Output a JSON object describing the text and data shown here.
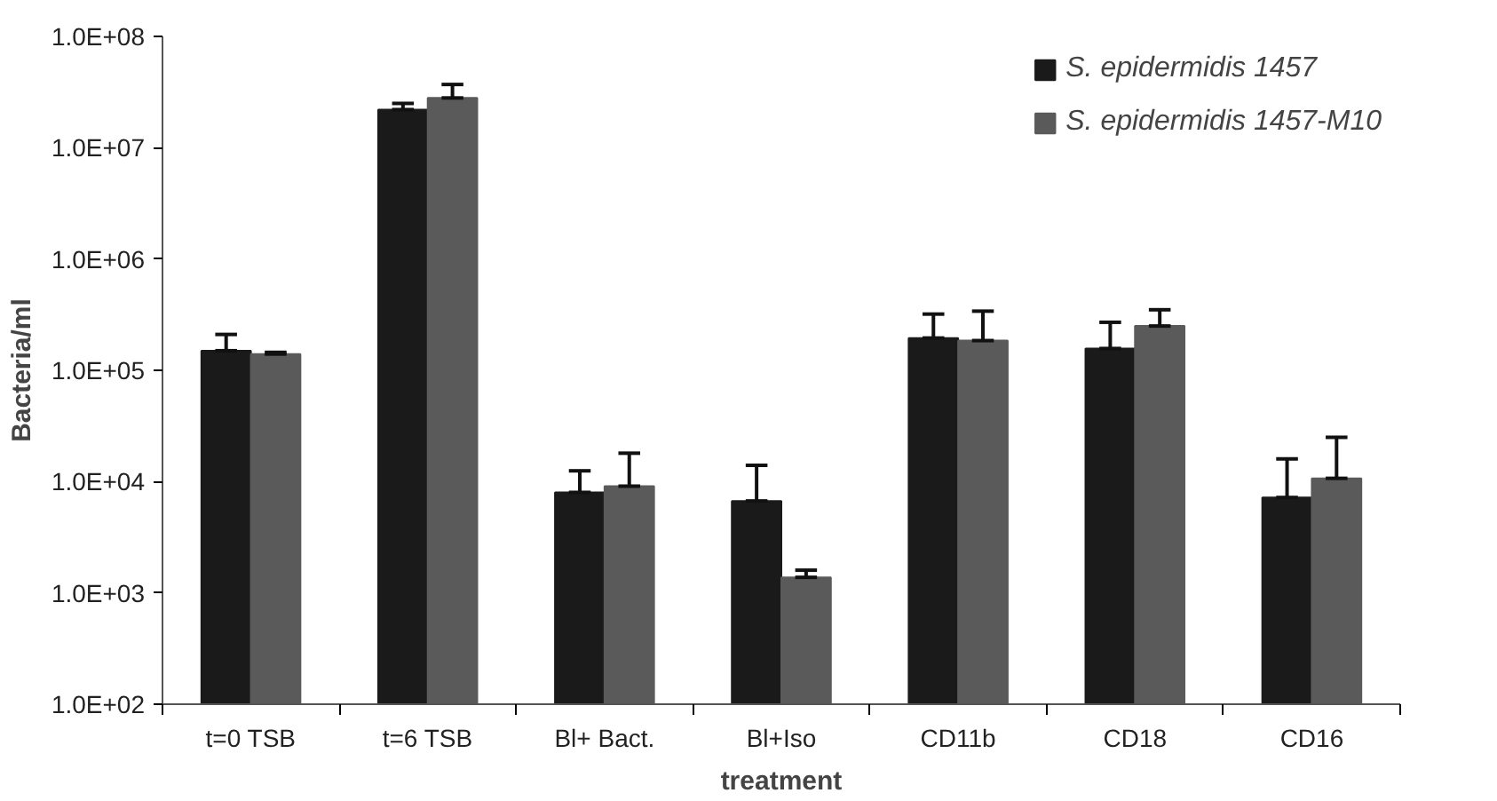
{
  "chart_data": {
    "type": "bar",
    "xlabel": "treatment",
    "ylabel": "Bacteria/ml",
    "categories": [
      "t=0 TSB",
      "t=6 TSB",
      "Bl+ Bact.",
      "Bl+Iso",
      "CD11b",
      "CD18",
      "CD16"
    ],
    "series": [
      {
        "name": "S. epidermidis 1457",
        "color": "#1a1a1a",
        "values": [
          150000,
          22000000,
          8000,
          6700,
          195000,
          157000,
          7200
        ],
        "errors": [
          [
            150000,
            210000
          ],
          [
            22000000,
            25000000
          ],
          [
            8000,
            12500
          ],
          [
            6700,
            14000
          ],
          [
            195000,
            320000
          ],
          [
            157000,
            270000
          ],
          [
            7200,
            16000
          ]
        ]
      },
      {
        "name": "S. epidermidis 1457-M10",
        "color": "#5a5a5a",
        "values": [
          140000,
          28000000,
          9100,
          1380,
          185000,
          250000,
          10700
        ],
        "errors": [
          [
            140000,
            145000
          ],
          [
            28000000,
            37000000
          ],
          [
            9100,
            18000
          ],
          [
            1380,
            1600
          ],
          [
            185000,
            340000
          ],
          [
            250000,
            350000
          ],
          [
            10700,
            25000
          ]
        ]
      }
    ],
    "log": "y",
    "ylim": [
      100,
      100000000
    ],
    "yticks": [
      {
        "value": 100,
        "label": "1.0E+02"
      },
      {
        "value": 1000,
        "label": "1.0E+03"
      },
      {
        "value": 10000,
        "label": "1.0E+04"
      },
      {
        "value": 100000,
        "label": "1.0E+05"
      },
      {
        "value": 1000000,
        "label": "1.0E+06"
      },
      {
        "value": 10000000,
        "label": "1.0E+07"
      },
      {
        "value": 100000000,
        "label": "1.0E+08"
      }
    ],
    "grid": false,
    "legend": "top right"
  }
}
